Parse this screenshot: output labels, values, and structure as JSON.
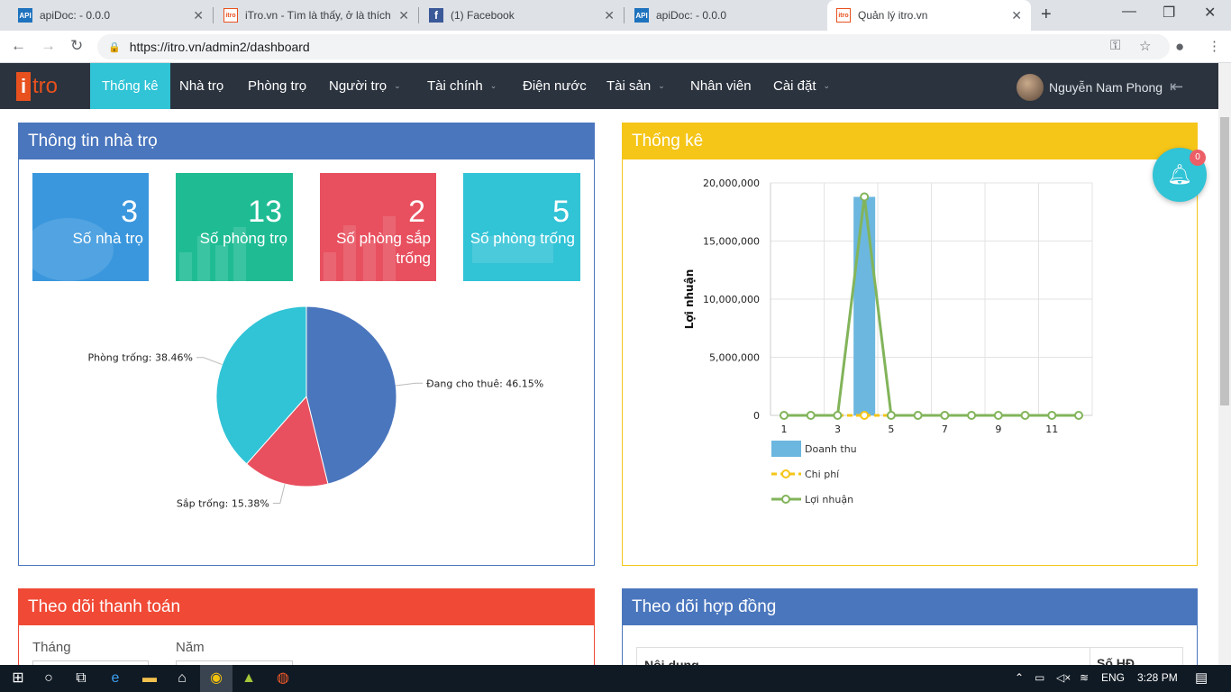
{
  "browser": {
    "tabs": [
      {
        "title": "apiDoc: - 0.0.0",
        "favicon": "api"
      },
      {
        "title": "iTro.vn - Tìm là thấy, ở là thích",
        "favicon": "itro"
      },
      {
        "title": "(1) Facebook",
        "favicon": "facebook"
      },
      {
        "title": "apiDoc: - 0.0.0",
        "favicon": "api"
      },
      {
        "title": "Quản lý itro.vn",
        "favicon": "itro"
      }
    ],
    "url": "https://itro.vn/admin2/dashboard"
  },
  "nav": {
    "items": [
      {
        "label": "Thống kê",
        "dropdown": false
      },
      {
        "label": "Nhà trọ",
        "dropdown": false
      },
      {
        "label": "Phòng trọ",
        "dropdown": false
      },
      {
        "label": "Người trọ",
        "dropdown": true
      },
      {
        "label": "Tài chính",
        "dropdown": true
      },
      {
        "label": "Điện nước",
        "dropdown": false
      },
      {
        "label": "Tài sản",
        "dropdown": true
      },
      {
        "label": "Nhân viên",
        "dropdown": false
      },
      {
        "label": "Cài đặt",
        "dropdown": true
      }
    ],
    "user_name": "Nguyễn Nam Phong"
  },
  "info_panel": {
    "title": "Thông tin nhà trọ",
    "stats": [
      {
        "value": "3",
        "label": "Số nhà trọ",
        "color": "#3a97dd"
      },
      {
        "value": "13",
        "label": "Số phòng trọ",
        "color": "#1fbc94"
      },
      {
        "value": "2",
        "label": "Số phòng sắp trống",
        "color": "#e8505f"
      },
      {
        "value": "5",
        "label": "Số phòng trống",
        "color": "#31c3d6"
      }
    ]
  },
  "pie_data": {
    "slices": [
      {
        "label": "Đang cho thuê: 46.15%",
        "value": 46.15,
        "color": "#4a76bd"
      },
      {
        "label": "Sắp trống: 15.38%",
        "value": 15.38,
        "color": "#e8505f"
      },
      {
        "label": "Phòng trống: 38.46%",
        "value": 38.46,
        "color": "#31c3d6"
      }
    ]
  },
  "stats_panel": {
    "title": "Thống kê"
  },
  "chart_data": {
    "type": "bar",
    "x": [
      1,
      2,
      3,
      4,
      5,
      6,
      7,
      8,
      9,
      10,
      11,
      12
    ],
    "xticks": [
      "1",
      "3",
      "5",
      "7",
      "9",
      "11"
    ],
    "yticks": [
      "20,000,000",
      "15,000,000",
      "10,000,000",
      "5,000,000",
      "0"
    ],
    "ylabel": "Lợi nhuận",
    "ylim": [
      0,
      20000000
    ],
    "series": [
      {
        "name": "Doanh thu",
        "kind": "bar",
        "color": "#6bb7df",
        "values": [
          0,
          0,
          0,
          18800000,
          0,
          0,
          0,
          0,
          0,
          0,
          0,
          0
        ]
      },
      {
        "name": "Chi phí",
        "kind": "line-dashed",
        "color": "#f5c518",
        "values": [
          0,
          0,
          0,
          0,
          0,
          0,
          0,
          0,
          0,
          0,
          0,
          0
        ]
      },
      {
        "name": "Lợi nhuận",
        "kind": "line",
        "color": "#82b45a",
        "values": [
          0,
          0,
          0,
          18800000,
          0,
          0,
          0,
          0,
          0,
          0,
          0,
          0
        ]
      }
    ],
    "grid": true,
    "legend": "bottom-left"
  },
  "payment_panel": {
    "title": "Theo dõi thanh toán",
    "month_label": "Tháng",
    "year_label": "Năm"
  },
  "contract_panel": {
    "title": "Theo dõi hợp đồng",
    "col_content": "Nội dung",
    "col_contract": "Số HĐ"
  },
  "notification": {
    "count": "0"
  },
  "taskbar": {
    "lang": "ENG",
    "time": "3:28 PM"
  }
}
